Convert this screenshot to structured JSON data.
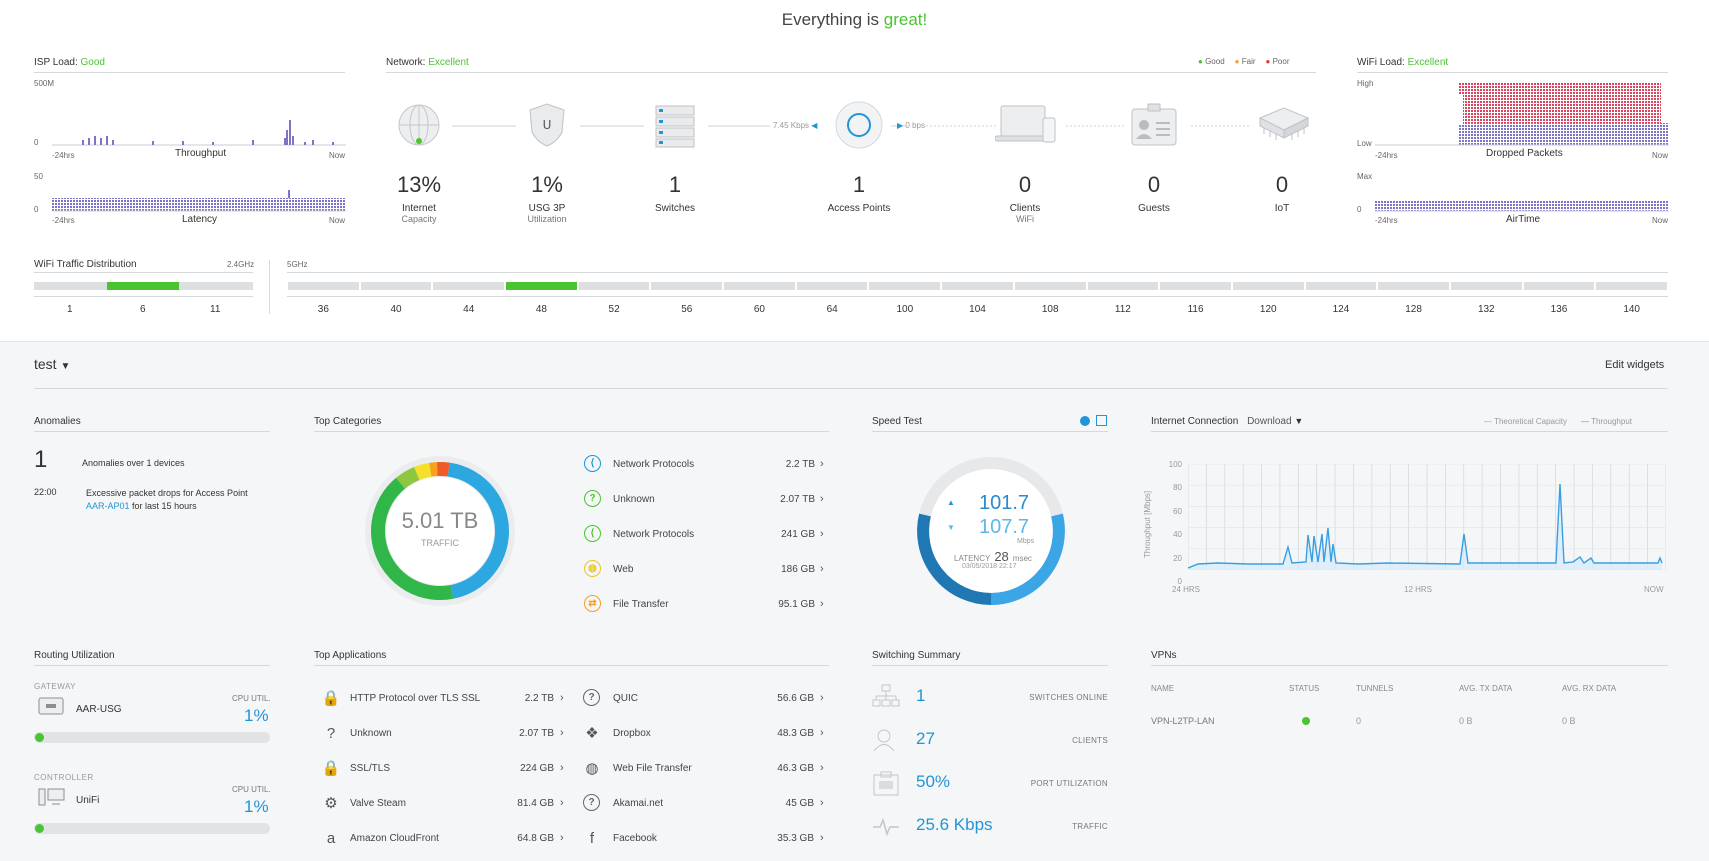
{
  "header": {
    "title_prefix": "Everything is ",
    "title_status": "great!"
  },
  "isp_load": {
    "label": "ISP Load:",
    "status": "Good",
    "throughput": {
      "max": "500M",
      "min": "0",
      "start": "-24hrs",
      "end": "Now",
      "title": "Throughput"
    },
    "latency": {
      "max": "50",
      "min": "0",
      "start": "-24hrs",
      "end": "Now",
      "title": "Latency"
    }
  },
  "network": {
    "label": "Network:",
    "status": "Excellent",
    "legend": {
      "good": "Good",
      "fair": "Fair",
      "poor": "Poor"
    },
    "rate_up": "7.45 Kbps",
    "rate_down": "0 bps",
    "nodes": [
      {
        "value": "13%",
        "label": "Internet",
        "sub": "Capacity"
      },
      {
        "value": "1%",
        "label": "USG 3P",
        "sub": "Utilization"
      },
      {
        "value": "1",
        "label": "Switches",
        "sub": ""
      },
      {
        "value": "1",
        "label": "Access Points",
        "sub": ""
      },
      {
        "value": "0",
        "label": "Clients",
        "sub": "WiFi"
      },
      {
        "value": "0",
        "label": "Guests",
        "sub": ""
      },
      {
        "value": "0",
        "label": "IoT",
        "sub": ""
      }
    ]
  },
  "wifi_load": {
    "label": "WiFi Load:",
    "status": "Excellent",
    "dropped": {
      "max": "High",
      "min": "Low",
      "start": "-24hrs",
      "end": "Now",
      "title": "Dropped Packets"
    },
    "airtime": {
      "max": "Max",
      "min": "0",
      "start": "-24hrs",
      "end": "Now",
      "title": "AirTime"
    }
  },
  "wifi_traffic": {
    "title": "WiFi Traffic Distribution",
    "band24": "2.4GHz",
    "band5": "5GHz",
    "channels24": [
      "1",
      "6",
      "11"
    ],
    "channels5": [
      "36",
      "40",
      "44",
      "48",
      "52",
      "56",
      "60",
      "64",
      "100",
      "104",
      "108",
      "112",
      "116",
      "120",
      "124",
      "128",
      "132",
      "136",
      "140"
    ]
  },
  "site": {
    "name": "test",
    "edit_widgets": "Edit widgets"
  },
  "anomalies": {
    "title": "Anomalies",
    "count": "1",
    "summary": "Anomalies over 1 devices",
    "time": "22:00",
    "text": "Excessive packet drops for Access Point",
    "device": "AAR-AP01",
    "suffix": "for last 15 hours"
  },
  "top_categories": {
    "title": "Top Categories",
    "total": "5.01 TB",
    "total_label": "TRAFFIC",
    "items": [
      {
        "label": "Network Protocols",
        "value": "2.2 TB"
      },
      {
        "label": "Unknown",
        "value": "2.07 TB"
      },
      {
        "label": "Network Protocols",
        "value": "241 GB"
      },
      {
        "label": "Web",
        "value": "186 GB"
      },
      {
        "label": "File Transfer",
        "value": "95.1 GB"
      }
    ]
  },
  "speed_test": {
    "title": "Speed Test",
    "up": "101.7",
    "down": "107.7",
    "unit": "Mbps",
    "latency_label": "LATENCY",
    "latency": "28",
    "latency_unit": "msec",
    "date": "03/05/2018 22:17"
  },
  "internet_connection": {
    "title": "Internet Connection",
    "mode": "Download",
    "legend_capacity": "Theoretical Capacity",
    "legend_throughput": "Throughput",
    "ylabel": "Throughput [Mbps]",
    "yticks": [
      "100",
      "80",
      "60",
      "40",
      "20",
      "0"
    ],
    "xticks": [
      "24 HRS",
      "12 HRS",
      "NOW"
    ],
    "colors": {
      "capacity": "#7ac943",
      "throughput": "#3a9fe0"
    }
  },
  "routing": {
    "title": "Routing Utilization",
    "gateway": {
      "section": "GATEWAY",
      "name": "AAR-USG",
      "util_label": "CPU UTIL.",
      "util": "1%"
    },
    "controller": {
      "section": "CONTROLLER",
      "name": "UniFi",
      "util_label": "CPU UTIL.",
      "util": "1%"
    }
  },
  "top_applications": {
    "title": "Top Applications",
    "left": [
      {
        "label": "HTTP Protocol over TLS SSL",
        "value": "2.2 TB"
      },
      {
        "label": "Unknown",
        "value": "2.07 TB"
      },
      {
        "label": "SSL/TLS",
        "value": "224 GB"
      },
      {
        "label": "Valve Steam",
        "value": "81.4 GB"
      },
      {
        "label": "Amazon CloudFront",
        "value": "64.8 GB"
      }
    ],
    "right": [
      {
        "label": "QUIC",
        "value": "56.6 GB"
      },
      {
        "label": "Dropbox",
        "value": "48.3 GB"
      },
      {
        "label": "Web File Transfer",
        "value": "46.3 GB"
      },
      {
        "label": "Akamai.net",
        "value": "45 GB"
      },
      {
        "label": "Facebook",
        "value": "35.3 GB"
      }
    ]
  },
  "switching": {
    "title": "Switching Summary",
    "items": [
      {
        "value": "1",
        "label": "SWITCHES ONLINE"
      },
      {
        "value": "27",
        "label": "CLIENTS"
      },
      {
        "value": "50%",
        "label": "PORT UTILIZATION"
      },
      {
        "value": "25.6 Kbps",
        "label": "TRAFFIC"
      }
    ]
  },
  "vpns": {
    "title": "VPNs",
    "columns": [
      "NAME",
      "STATUS",
      "TUNNELS",
      "AVG. TX DATA",
      "AVG. RX DATA"
    ],
    "rows": [
      {
        "name": "VPN-L2TP-LAN",
        "tunnels": "0",
        "tx": "0 B",
        "rx": "0 B"
      }
    ]
  }
}
